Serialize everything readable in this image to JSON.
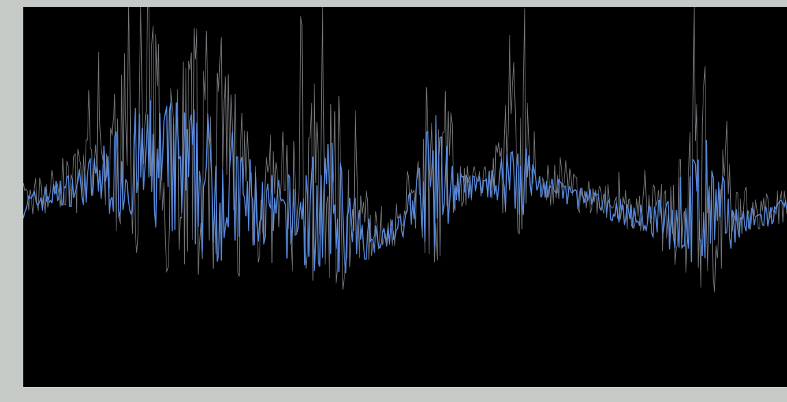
{
  "window": {
    "background": "#c6cac7",
    "plot_background": "#000000"
  },
  "chart_data": {
    "type": "line",
    "x": [],
    "series": [
      {
        "values": [],
        "color": "#5b8ee6"
      },
      {
        "values": [],
        "color": "#d8dde3"
      }
    ],
    "y_tick_labels": [
      "",
      "",
      "",
      "",
      "",
      "",
      ""
    ],
    "x_tick_labels": [
      "",
      "",
      "",
      "",
      "",
      ""
    ],
    "ylim": [
      0,
      6
    ],
    "grid": false,
    "legend": "none"
  }
}
